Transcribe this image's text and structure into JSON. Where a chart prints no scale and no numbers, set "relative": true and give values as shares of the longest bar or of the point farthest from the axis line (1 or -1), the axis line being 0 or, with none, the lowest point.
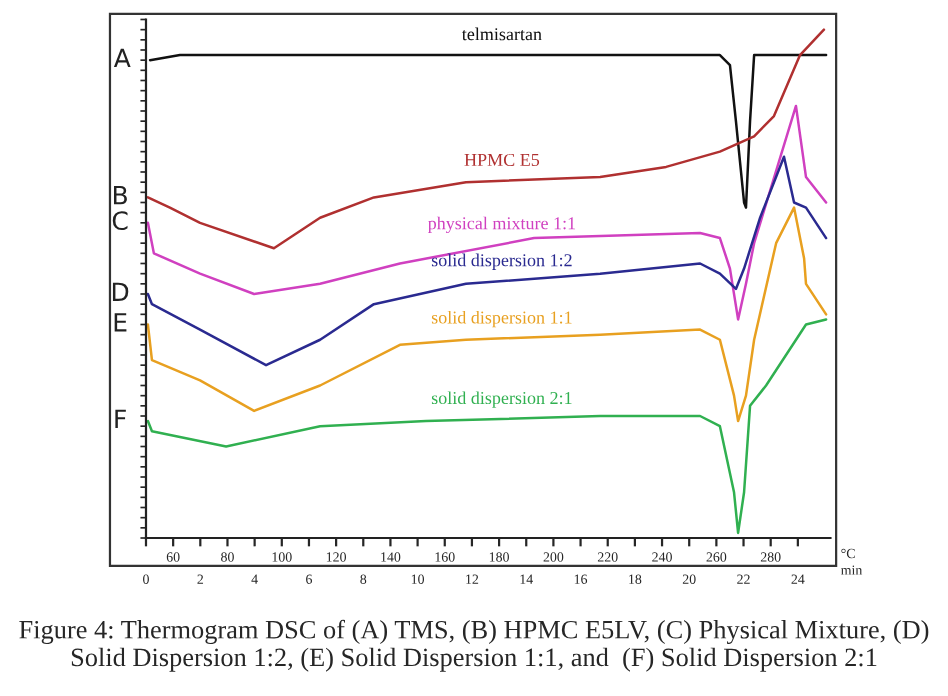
{
  "chart_data": {
    "type": "line",
    "relative": true,
    "tick_labels": "x",
    "grid": false,
    "marker": "none",
    "line_style": "solid",
    "xlabel": "min",
    "x2label": "°C",
    "xlim": [
      0,
      25.2
    ],
    "xticks": [
      0,
      2,
      4,
      6,
      8,
      10,
      12,
      14,
      16,
      18,
      20,
      22,
      24
    ],
    "x2lim": [
      50,
      302
    ],
    "x2ticks": [
      60,
      80,
      100,
      120,
      140,
      160,
      180,
      200,
      220,
      240,
      260,
      280
    ],
    "series": [
      {
        "name": "telmisartan",
        "color": "#111111",
        "x": [
          0.15,
          1.25,
          21.13,
          21.5,
          21.72,
          22.02,
          22.09,
          22.24,
          22.39,
          22.61,
          25.04
        ],
        "values": [
          0.94,
          0.95,
          0.95,
          0.93,
          0.82,
          0.66,
          0.65,
          0.82,
          0.95,
          0.95,
          0.95
        ]
      },
      {
        "name": "HPMC E5",
        "color": "#b03030",
        "x": [
          0.07,
          0.88,
          1.99,
          4.71,
          6.41,
          8.39,
          11.78,
          16.72,
          19.15,
          21.13,
          22.39,
          23.12,
          24.08,
          24.96
        ],
        "values": [
          0.67,
          0.65,
          0.62,
          0.57,
          0.63,
          0.67,
          0.7,
          0.71,
          0.73,
          0.76,
          0.79,
          0.83,
          0.95,
          1.0
        ]
      },
      {
        "name": "physical mixture 1:1",
        "color": "#d040c0",
        "x": [
          0.07,
          0.29,
          1.99,
          3.98,
          6.41,
          9.35,
          14.29,
          20.4,
          21.13,
          21.5,
          21.8,
          22.09,
          22.39,
          23.93,
          24.3,
          25.04
        ],
        "values": [
          0.62,
          0.56,
          0.52,
          0.48,
          0.5,
          0.54,
          0.59,
          0.6,
          0.59,
          0.53,
          0.43,
          0.5,
          0.58,
          0.85,
          0.71,
          0.66
        ]
      },
      {
        "name": "solid dispersion 1:2",
        "color": "#2a2a90",
        "x": [
          0.07,
          0.22,
          1.99,
          4.42,
          6.41,
          8.39,
          11.78,
          16.72,
          20.4,
          21.13,
          21.72,
          22.02,
          22.61,
          23.49,
          23.86,
          24.3,
          25.04
        ],
        "values": [
          0.48,
          0.46,
          0.41,
          0.34,
          0.39,
          0.46,
          0.5,
          0.52,
          0.54,
          0.52,
          0.49,
          0.53,
          0.63,
          0.75,
          0.66,
          0.65,
          0.59
        ]
      },
      {
        "name": "solid dispersion 1:1",
        "color": "#e8a020",
        "x": [
          0.07,
          0.22,
          1.99,
          3.98,
          6.41,
          9.35,
          11.78,
          16.72,
          20.4,
          21.13,
          21.65,
          21.8,
          22.09,
          22.39,
          23.2,
          23.86,
          24.23,
          24.3,
          25.04
        ],
        "values": [
          0.42,
          0.35,
          0.31,
          0.25,
          0.3,
          0.38,
          0.39,
          0.4,
          0.41,
          0.39,
          0.28,
          0.23,
          0.28,
          0.39,
          0.58,
          0.65,
          0.55,
          0.5,
          0.44
        ]
      },
      {
        "name": "solid dispersion 2:1",
        "color": "#30b050",
        "x": [
          0.07,
          0.22,
          2.95,
          6.41,
          10.31,
          16.72,
          20.4,
          21.13,
          21.65,
          21.8,
          22.02,
          22.24,
          22.83,
          24.3,
          25.04
        ],
        "values": [
          0.23,
          0.21,
          0.18,
          0.22,
          0.23,
          0.24,
          0.24,
          0.22,
          0.09,
          0.01,
          0.09,
          0.26,
          0.3,
          0.42,
          0.43
        ]
      }
    ],
    "annotations": [
      "A",
      "B",
      "C",
      "D",
      "E",
      "F",
      "Figure 4: Thermogram DSC of (A) TMS, (B) HPMC E5LV, (C) Physical Mixture, (D) Solid Dispersion 1:2, (E) Solid Dispersion 1:1, and  (F) Solid Dispersion 2:1"
    ]
  }
}
